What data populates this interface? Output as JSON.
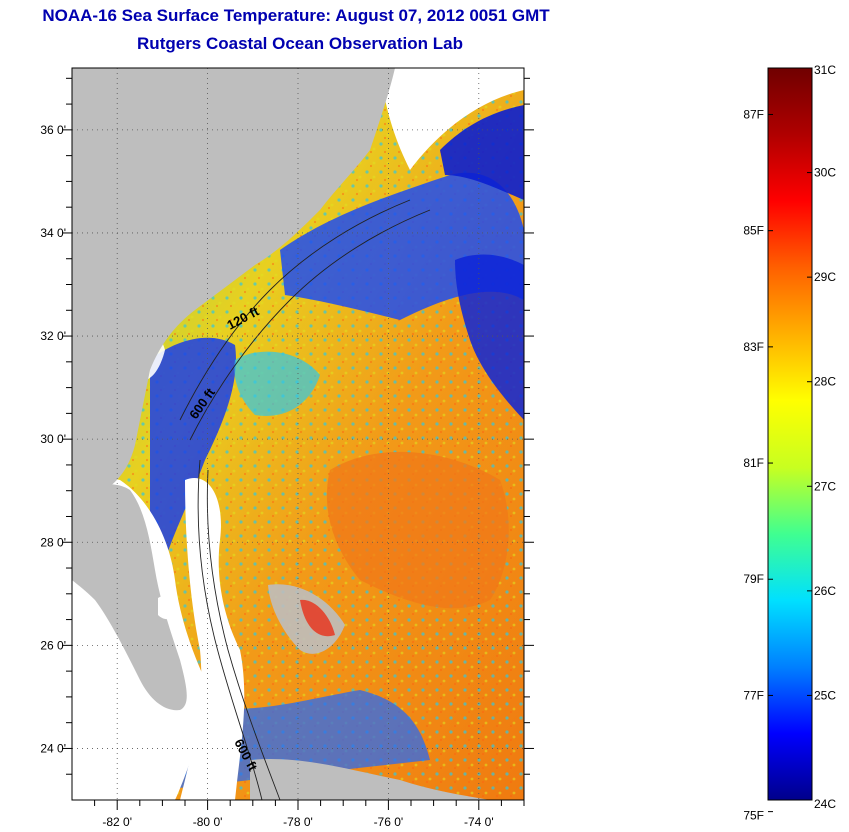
{
  "title": "NOAA-16 Sea Surface Temperature:  August 07, 2012 0051 GMT",
  "subtitle": "Rutgers Coastal Ocean Observation Lab",
  "map": {
    "lat_ticks": [
      "24 0'",
      "26 0'",
      "28 0'",
      "30 0'",
      "32 0'",
      "34 0'",
      "36 0'"
    ],
    "lon_ticks": [
      "-82 0'",
      "-80 0'",
      "-78 0'",
      "-76 0'",
      "-74 0'"
    ],
    "lat_range": [
      23,
      37.2
    ],
    "lon_range": [
      -83,
      -73
    ],
    "contours": {
      "c120": "120 ft",
      "c600a": "600 ft",
      "c600b": "600 ft"
    },
    "colors": {
      "land": "#bebebe",
      "cloud": "#ffffff",
      "cold": "#0b1fd6",
      "warm": "#f08a12"
    }
  },
  "colorbar": {
    "celsius": [
      "31C",
      "30C",
      "29C",
      "28C",
      "27C",
      "26C",
      "25C",
      "24C"
    ],
    "fahrenheit": [
      "87F",
      "85F",
      "83F",
      "81F",
      "79F",
      "77F",
      "75F"
    ],
    "range_c": [
      24,
      31
    ],
    "stops": [
      "#00008b",
      "#0000ff",
      "#0080ff",
      "#00e0ff",
      "#40ff90",
      "#c8ff20",
      "#ffff00",
      "#ffb000",
      "#ff6000",
      "#ff0000",
      "#b00000",
      "#700000"
    ]
  }
}
